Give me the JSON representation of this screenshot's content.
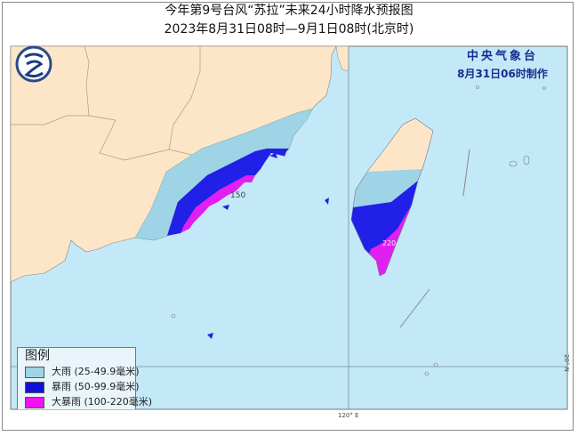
{
  "title": {
    "line1": "今年第9号台风“苏拉”未来24小时降水预报图",
    "line2": "2023年8月31日08时—9月1日08时(北京时)"
  },
  "agency": {
    "name": "中央气象台",
    "issued": "8月31日06时制作"
  },
  "logo": {
    "icon": "cma-logo-icon"
  },
  "map": {
    "colors": {
      "sea": "#c3e8f8",
      "land": "#fde6c8",
      "heavy_rain": "#9fd3e6",
      "rainstorm": "#2020e8",
      "heavy_rainstorm": "#e020f0"
    },
    "labels": {
      "mainland_max": "150",
      "taiwan_max": "220"
    },
    "grid": {
      "lon": "120° E",
      "lat": "20° N"
    }
  },
  "legend": {
    "title": "图例",
    "items": [
      {
        "label": "大雨 (25-49.9毫米)",
        "color": "#9fd3e6"
      },
      {
        "label": "暴雨 (50-99.9毫米)",
        "color": "#1010d8"
      },
      {
        "label": "大暴雨 (100-220毫米)",
        "color": "#f010f0"
      }
    ]
  }
}
